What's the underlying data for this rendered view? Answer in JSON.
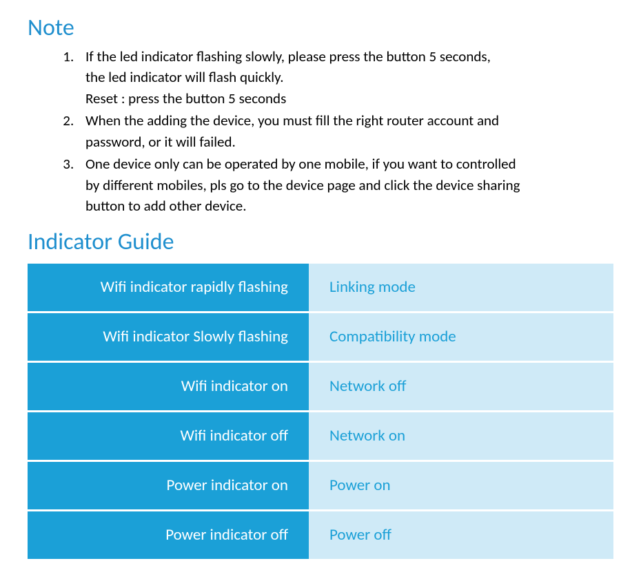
{
  "note": {
    "heading": "Note",
    "heading_color": "#1f8fce",
    "heading_fontsize": 34,
    "text_color": "#000000",
    "text_fontsize": 21,
    "items": [
      {
        "lines": [
          "If the led indicator flashing slowly, please press the button 5 seconds,",
          "the led indicator will flash quickly.",
          "Reset : press the button 5 seconds"
        ]
      },
      {
        "lines": [
          "When the adding the device, you must fill the right router account and",
          "password, or it will failed."
        ]
      },
      {
        "lines": [
          "One device only can be operated by one mobile, if you want to controlled",
          "by different mobiles, pls go to the device page and click the device sharing",
          "button to add other device."
        ]
      }
    ]
  },
  "guide": {
    "heading": "Indicator Guide",
    "heading_color": "#1f8fce",
    "heading_fontsize": 34,
    "table": {
      "type": "table",
      "left_col_bg": "#1ba0d7",
      "left_col_text_color": "#ffffff",
      "right_col_bg": "#cfeaf7",
      "right_col_text_color": "#1ba0d7",
      "row_gap": 3,
      "cell_fontsize": 23,
      "rows": [
        {
          "state": "Wifi indicator rapidly flashing",
          "meaning": "Linking mode"
        },
        {
          "state": "Wifi indicator Slowly flashing",
          "meaning": "Compatibility mode"
        },
        {
          "state": "Wifi indicator on",
          "meaning": "Network off"
        },
        {
          "state": "Wifi indicator off",
          "meaning": "Network on"
        },
        {
          "state": "Power indicator on",
          "meaning": "Power on"
        },
        {
          "state": "Power indicator off",
          "meaning": "Power off"
        }
      ]
    }
  }
}
